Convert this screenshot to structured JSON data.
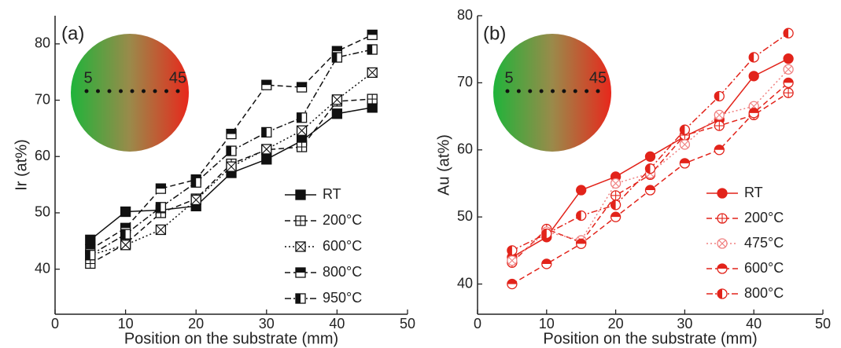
{
  "chart_data": [
    {
      "type": "line",
      "panel_label": "(a)",
      "x_label": "Position on the substrate (mm)",
      "y_label": "Ir (at%)",
      "inset_labels": [
        "5",
        "45"
      ],
      "x": [
        5,
        10,
        15,
        20,
        25,
        30,
        35,
        40,
        45
      ],
      "xlim": [
        0,
        50
      ],
      "xticks": [
        0,
        10,
        20,
        30,
        40,
        50
      ],
      "ylim": [
        32,
        85
      ],
      "yticks": [
        40,
        50,
        60,
        70,
        80
      ],
      "legend": "lower right",
      "series": [
        {
          "name": "RT",
          "color": "#111111",
          "line_style": "solid",
          "marker": "square",
          "marker_fill": "full",
          "values": [
            45.2,
            50.2,
            50.5,
            51.2,
            57.1,
            59.5,
            62.8,
            67.6,
            68.7
          ]
        },
        {
          "name": "200°C",
          "color": "#111111",
          "line_style": "dash",
          "marker": "square",
          "marker_fill": "plus",
          "values": [
            41.0,
            44.5,
            50.0,
            52.5,
            58.7,
            61.2,
            61.7,
            69.8,
            70.2
          ]
        },
        {
          "name": "600°C",
          "color": "#111111",
          "line_style": "dot",
          "marker": "square",
          "marker_fill": "cross",
          "values": [
            42.5,
            44.3,
            47.0,
            52.3,
            58.2,
            61.3,
            64.6,
            70.1,
            74.9
          ]
        },
        {
          "name": "800°C",
          "color": "#111111",
          "line_style": "dash",
          "marker": "square",
          "marker_fill": "top",
          "values": [
            43.5,
            47.3,
            54.3,
            55.9,
            64.0,
            72.7,
            72.3,
            78.7,
            81.6
          ]
        },
        {
          "name": "950°C",
          "color": "#111111",
          "line_style": "dashdot",
          "marker": "square",
          "marker_fill": "left",
          "values": [
            42.5,
            46.2,
            51.0,
            55.4,
            61.0,
            64.3,
            66.9,
            77.6,
            79.0
          ]
        }
      ]
    },
    {
      "type": "line",
      "panel_label": "(b)",
      "x_label": "Position on the substrate (mm)",
      "y_label": "Au (at%)",
      "inset_labels": [
        "5",
        "45"
      ],
      "x": [
        5,
        10,
        15,
        20,
        25,
        30,
        35,
        40,
        45
      ],
      "xlim": [
        0,
        50
      ],
      "xticks": [
        0,
        10,
        20,
        30,
        40,
        50
      ],
      "ylim": [
        35.5,
        80
      ],
      "yticks": [
        40,
        50,
        60,
        70,
        80
      ],
      "legend": "lower right",
      "series": [
        {
          "name": "RT",
          "color": "#e2231a",
          "line_style": "solid",
          "marker": "circle",
          "marker_fill": "full",
          "values": [
            44.0,
            47.0,
            54.0,
            56.0,
            59.0,
            62.0,
            64.5,
            71.0,
            73.6
          ]
        },
        {
          "name": "200°C",
          "color": "#e2231a",
          "line_style": "dash",
          "marker": "circle",
          "marker_fill": "plus",
          "values": [
            43.2,
            48.2,
            46.2,
            53.2,
            56.3,
            62.2,
            63.6,
            65.2,
            68.5
          ]
        },
        {
          "name": "475°C",
          "color": "#f08080",
          "line_style": "dot",
          "marker": "circle",
          "marker_fill": "cross",
          "values": [
            43.5,
            47.8,
            46.5,
            55.0,
            56.5,
            60.8,
            65.2,
            66.5,
            72.0
          ]
        },
        {
          "name": "600°C",
          "color": "#e2231a",
          "line_style": "dash",
          "marker": "circle",
          "marker_fill": "top",
          "values": [
            40.0,
            43.0,
            46.0,
            50.0,
            54.0,
            58.0,
            60.0,
            65.5,
            70.0
          ]
        },
        {
          "name": "800°C",
          "color": "#e2231a",
          "line_style": "dashdot",
          "marker": "circle",
          "marker_fill": "left",
          "values": [
            45.0,
            47.5,
            50.2,
            51.8,
            57.2,
            63.0,
            68.0,
            73.8,
            77.4
          ]
        }
      ]
    }
  ]
}
